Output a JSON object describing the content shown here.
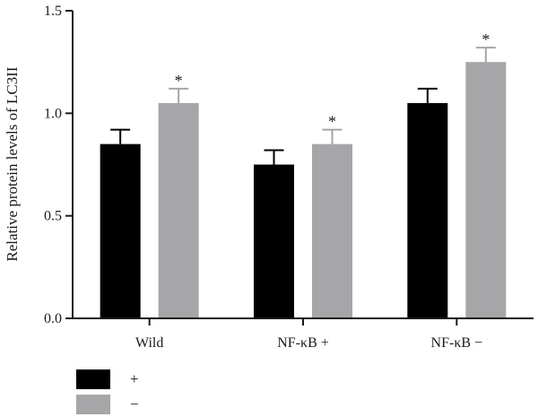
{
  "chart_data": {
    "type": "bar",
    "title": "",
    "xlabel": "",
    "ylabel": "Relative protein levels of LC3II",
    "ylim": [
      0,
      1.5
    ],
    "yticks": [
      "0.0",
      "0.5",
      "1.0",
      "1.5"
    ],
    "categories": [
      "Wild",
      "NF-κB +",
      "NF-κB −"
    ],
    "series": [
      {
        "name": "+",
        "color": "#000000",
        "values": [
          0.85,
          0.75,
          1.05
        ],
        "errors": [
          0.07,
          0.07,
          0.07
        ],
        "significance": [
          "",
          "",
          ""
        ]
      },
      {
        "name": "−",
        "color": "#a6a6a8",
        "values": [
          1.05,
          0.85,
          1.25
        ],
        "errors": [
          0.07,
          0.07,
          0.07
        ],
        "significance": [
          "*",
          "*",
          "*"
        ]
      }
    ],
    "grid": false,
    "legend_position": "bottom-left"
  }
}
